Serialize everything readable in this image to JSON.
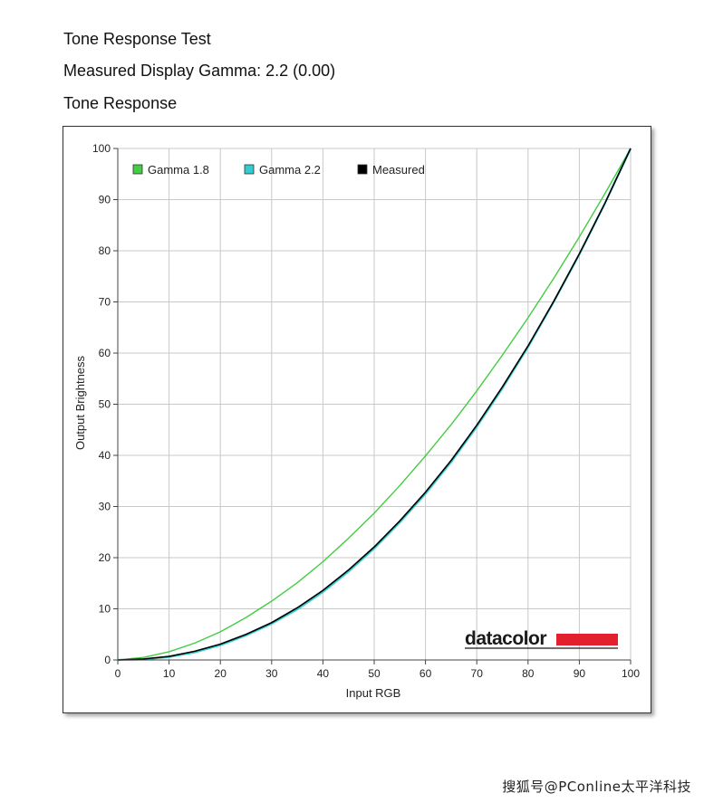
{
  "report": {
    "title": "Tone Response Test",
    "measured_gamma_text": "Measured Display Gamma: 2.2 (0.00)",
    "section_label": "Tone Response"
  },
  "branding": {
    "logo_text": "datacolor",
    "logo_accent_color": "#e3202e"
  },
  "watermark": "搜狐号@PConline太平洋科技",
  "chart_data": {
    "type": "line",
    "xlabel": "Input RGB",
    "ylabel": "Output Brightness",
    "xlim": [
      0,
      100
    ],
    "ylim": [
      0,
      100
    ],
    "x_ticks": [
      0,
      10,
      20,
      30,
      40,
      50,
      60,
      70,
      80,
      90,
      100
    ],
    "y_ticks": [
      0,
      10,
      20,
      30,
      40,
      50,
      60,
      70,
      80,
      90,
      100
    ],
    "grid": true,
    "legend_position": "top-left",
    "x": [
      0,
      5,
      10,
      15,
      20,
      25,
      30,
      35,
      40,
      45,
      50,
      55,
      60,
      65,
      70,
      75,
      80,
      85,
      90,
      95,
      100
    ],
    "series": [
      {
        "name": "Gamma 1.8",
        "color": "#44cc44",
        "values": [
          0,
          0.5,
          1.6,
          3.3,
          5.5,
          8.3,
          11.5,
          15.1,
          19.2,
          23.8,
          28.7,
          34.1,
          39.9,
          46.0,
          52.6,
          59.6,
          66.9,
          74.6,
          82.7,
          91.2,
          100
        ]
      },
      {
        "name": "Gamma 2.2",
        "color": "#33cccc",
        "values": [
          0,
          0.1,
          0.6,
          1.5,
          2.9,
          4.8,
          7.1,
          9.9,
          13.3,
          17.3,
          21.8,
          26.9,
          32.5,
          38.7,
          45.6,
          53.1,
          61.2,
          70.0,
          79.3,
          89.3,
          100
        ]
      },
      {
        "name": "Measured",
        "color": "#000000",
        "values": [
          0,
          0.2,
          0.7,
          1.7,
          3.1,
          5.0,
          7.3,
          10.2,
          13.6,
          17.6,
          22.1,
          27.2,
          32.8,
          39.0,
          45.9,
          53.4,
          61.4,
          70.1,
          79.4,
          89.3,
          100
        ]
      }
    ]
  }
}
